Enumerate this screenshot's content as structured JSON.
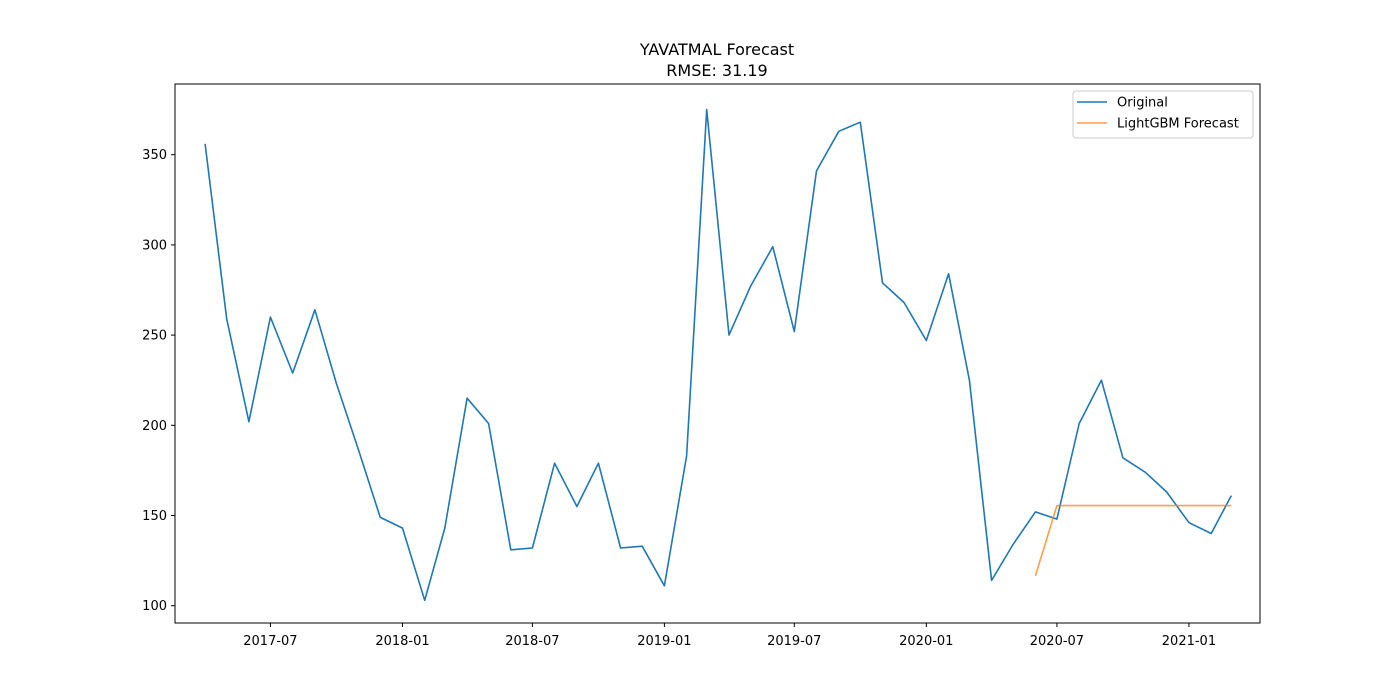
{
  "chart_data": {
    "type": "line",
    "title": "YAVATMAL Forecast",
    "subtitle": "RMSE: 31.19",
    "xlabel": "",
    "ylabel": "",
    "grid": false,
    "legend_position": "top-right",
    "x_ticks": [
      "2017-07",
      "2018-01",
      "2018-07",
      "2019-01",
      "2019-07",
      "2020-01",
      "2020-07",
      "2021-01"
    ],
    "y_ticks": [
      100,
      150,
      200,
      250,
      300,
      350
    ],
    "x_range": [
      "2017-02-18",
      "2021-04-10"
    ],
    "ylim": [
      90.4,
      389.2
    ],
    "series": [
      {
        "name": "Original",
        "color": "#1f77b4",
        "x": [
          "2017-04",
          "2017-05",
          "2017-06",
          "2017-07",
          "2017-08",
          "2017-09",
          "2017-10",
          "2017-11",
          "2017-12",
          "2018-01",
          "2018-02",
          "2018-03",
          "2018-04",
          "2018-05",
          "2018-06",
          "2018-07",
          "2018-08",
          "2018-09",
          "2018-10",
          "2018-11",
          "2018-12",
          "2019-01",
          "2019-02",
          "2019-03",
          "2019-04",
          "2019-05",
          "2019-06",
          "2019-07",
          "2019-08",
          "2019-09",
          "2019-10",
          "2019-11",
          "2019-12",
          "2020-01",
          "2020-02",
          "2020-03",
          "2020-04",
          "2020-05",
          "2020-06",
          "2020-07",
          "2020-08",
          "2020-09",
          "2020-10",
          "2020-11",
          "2020-12",
          "2021-01",
          "2021-02",
          "2021-03"
        ],
        "values": [
          356,
          259,
          202,
          260,
          229,
          264,
          223,
          186,
          149,
          143,
          103,
          143,
          215,
          201,
          131,
          132,
          179,
          155,
          179,
          132,
          133,
          111,
          183,
          375,
          250,
          277,
          299,
          252,
          341,
          363,
          368,
          279,
          268,
          247,
          284,
          225,
          114,
          134,
          152,
          148,
          201,
          225,
          182,
          174,
          163,
          146,
          140,
          161
        ]
      },
      {
        "name": "LightGBM Forecast",
        "color": "#ff7f0e",
        "x": [
          "2020-06",
          "2020-07",
          "2020-08",
          "2020-09",
          "2020-10",
          "2020-11",
          "2020-12",
          "2021-01",
          "2021-02",
          "2021-03"
        ],
        "values": [
          116.5,
          155.5,
          155.5,
          155.5,
          155.5,
          155.5,
          155.5,
          155.5,
          155.5,
          155.5
        ]
      }
    ]
  }
}
